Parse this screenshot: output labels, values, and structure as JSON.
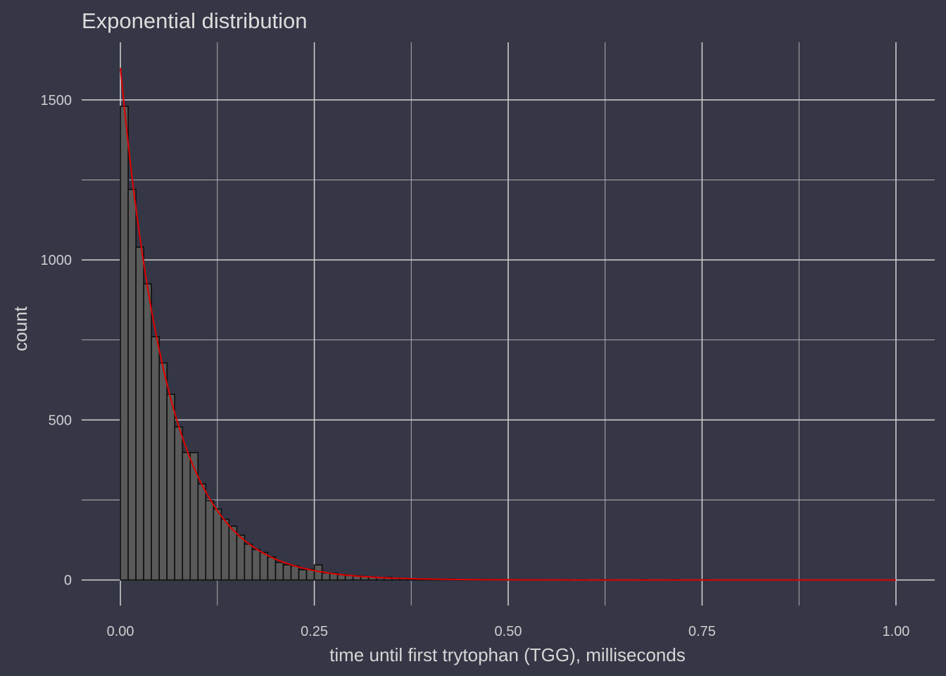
{
  "chart_data": {
    "type": "bar",
    "title": "Exponential distribution",
    "xlabel": "time until first trytophan (TGG), milliseconds",
    "ylabel": "count",
    "xlim": [
      -0.05,
      1.05
    ],
    "ylim": [
      -80,
      1680
    ],
    "x_ticks": [
      0,
      0.25,
      0.5,
      0.75,
      1
    ],
    "x_tick_labels": [
      "0.00",
      "0.25",
      "0.50",
      "0.75",
      "1.00"
    ],
    "x_minor_ticks": [
      0.125,
      0.375,
      0.625,
      0.875
    ],
    "y_ticks": [
      0,
      500,
      1000,
      1500
    ],
    "y_tick_labels": [
      "0",
      "500",
      "1000",
      "1500"
    ],
    "y_minor_ticks": [
      250,
      750,
      1250
    ],
    "grid": true,
    "legend": "none",
    "colors": {
      "background": "#353746",
      "bar_fill": "#595959",
      "bar_outline": "#0d0d0d",
      "curve": "#e00000",
      "grid": "#d4d4d4",
      "text": "#cfcfcf"
    },
    "bin_start": 0,
    "bin_width": 0.01,
    "counts": [
      1480,
      1220,
      1040,
      925,
      760,
      678,
      580,
      478,
      398,
      398,
      300,
      248,
      222,
      190,
      168,
      140,
      112,
      95,
      86,
      72,
      55,
      47,
      44,
      32,
      33,
      47,
      22,
      21,
      17,
      14,
      13,
      11,
      9,
      7,
      8,
      6,
      5,
      4,
      4,
      3,
      3,
      2,
      3,
      2,
      2,
      1,
      2,
      2,
      1,
      1,
      1,
      1,
      1,
      1,
      1,
      0,
      1,
      1,
      0,
      1,
      0,
      0,
      1,
      0,
      0,
      0,
      0,
      1,
      0,
      0,
      0,
      1,
      0,
      0,
      0,
      1,
      0,
      0,
      0,
      0,
      0,
      0,
      0,
      0,
      0,
      0,
      0,
      0,
      0,
      0,
      0,
      0,
      0,
      0,
      0,
      0,
      0,
      0,
      0,
      0
    ],
    "fitted_curve": {
      "type": "line",
      "label": "",
      "formula": "1600 * exp(-16 * x)",
      "amplitude": 1600,
      "rate": 16,
      "x_range": [
        0,
        1
      ]
    }
  }
}
